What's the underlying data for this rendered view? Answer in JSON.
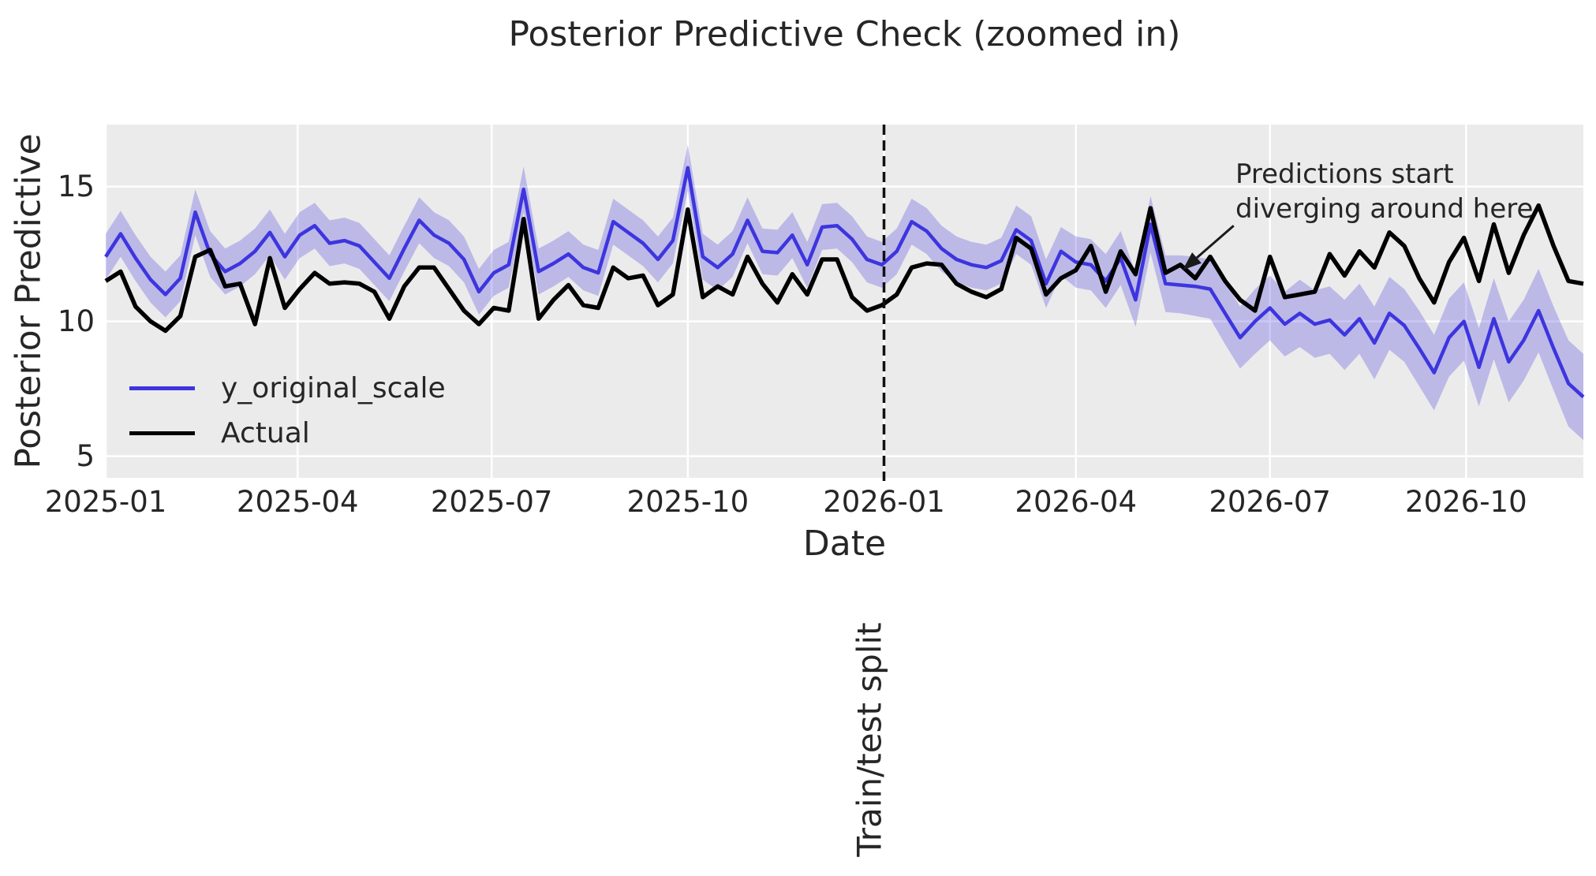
{
  "style": {
    "figure_background": "#ffffff",
    "axes_background": "#EBEBEB",
    "grid_color": "#ffffff",
    "text_color": "#262626"
  },
  "chart_data": {
    "type": "line",
    "title": "Posterior Predictive Check (zoomed in)",
    "xlabel": "Date",
    "ylabel": "Posterior Predictive",
    "grid": true,
    "x_start_date": "2025-01-01",
    "x_interval_days": 7,
    "n_points": 100,
    "xlim_days": [
      0,
      693
    ],
    "ylim": [
      4.2,
      17.3
    ],
    "x_ticks": [
      {
        "label": "2025-01",
        "day": 0
      },
      {
        "label": "2025-04",
        "day": 90
      },
      {
        "label": "2025-07",
        "day": 181
      },
      {
        "label": "2025-10",
        "day": 273
      },
      {
        "label": "2026-01",
        "day": 365
      },
      {
        "label": "2026-04",
        "day": 455
      },
      {
        "label": "2026-07",
        "day": 546
      },
      {
        "label": "2026-10",
        "day": 638
      }
    ],
    "y_ticks": [
      {
        "label": "15",
        "value": 15
      },
      {
        "label": "10",
        "value": 10
      },
      {
        "label": "5",
        "value": 5
      }
    ],
    "series": [
      {
        "name": "y_original_scale",
        "color": "#3D35DE",
        "line_width": 4.5,
        "values": [
          12.4,
          13.25,
          12.35,
          11.55,
          11.0,
          11.6,
          14.05,
          12.5,
          11.85,
          12.15,
          12.6,
          13.3,
          12.4,
          13.2,
          13.55,
          12.9,
          13.0,
          12.8,
          12.2,
          11.6,
          12.7,
          13.75,
          13.2,
          12.9,
          12.3,
          11.1,
          11.8,
          12.1,
          14.9,
          11.85,
          12.15,
          12.5,
          12.0,
          11.8,
          13.7,
          13.3,
          12.9,
          12.3,
          13.0,
          15.7,
          12.4,
          12.0,
          12.5,
          13.75,
          12.6,
          12.55,
          13.2,
          12.1,
          13.5,
          13.55,
          13.05,
          12.3,
          12.1,
          12.6,
          13.7,
          13.35,
          12.7,
          12.3,
          12.1,
          12.0,
          12.25,
          13.4,
          13.0,
          11.4,
          12.6,
          12.2,
          12.1,
          11.5,
          12.35,
          10.8,
          13.6,
          11.4,
          11.35,
          11.3,
          11.2,
          10.3,
          9.4,
          10.0,
          10.5,
          9.9,
          10.3,
          9.9,
          10.05,
          9.5,
          10.1,
          9.2,
          10.3,
          9.85,
          9.0,
          8.1,
          9.4,
          10.0,
          8.3,
          10.1,
          8.5,
          9.3,
          10.4,
          9.0,
          7.7,
          7.2
        ]
      },
      {
        "name": "Actual",
        "color": "#000000",
        "line_width": 5.5,
        "values": [
          11.5,
          11.85,
          10.55,
          10.0,
          9.65,
          10.2,
          12.4,
          12.65,
          11.3,
          11.4,
          9.9,
          12.35,
          10.5,
          11.2,
          11.8,
          11.4,
          11.45,
          11.4,
          11.1,
          10.1,
          11.3,
          12.0,
          12.0,
          11.2,
          10.4,
          9.9,
          10.5,
          10.4,
          13.8,
          10.1,
          10.8,
          11.35,
          10.6,
          10.5,
          12.0,
          11.6,
          11.7,
          10.6,
          11.0,
          14.15,
          10.9,
          11.3,
          11.0,
          12.4,
          11.4,
          10.7,
          11.75,
          11.0,
          12.3,
          12.3,
          10.9,
          10.4,
          10.6,
          11.0,
          12.0,
          12.15,
          12.1,
          11.4,
          11.1,
          10.9,
          11.2,
          13.1,
          12.7,
          11.0,
          11.6,
          11.9,
          12.8,
          11.1,
          12.6,
          11.75,
          14.2,
          11.8,
          12.1,
          11.6,
          12.4,
          11.5,
          10.8,
          10.4,
          12.4,
          10.9,
          11.0,
          11.1,
          12.5,
          11.7,
          12.6,
          12.0,
          13.3,
          12.8,
          11.6,
          10.7,
          12.2,
          13.1,
          11.5,
          13.6,
          11.8,
          13.2,
          14.3,
          12.8,
          11.5,
          11.4
        ]
      }
    ],
    "band": {
      "series": "y_original_scale",
      "color": "#3D35DE",
      "opacity": 0.27,
      "upper": [
        13.25,
        14.1,
        13.2,
        12.4,
        11.85,
        12.45,
        14.9,
        13.35,
        12.7,
        13.0,
        13.45,
        14.15,
        13.25,
        14.05,
        14.4,
        13.75,
        13.85,
        13.65,
        13.05,
        12.45,
        13.55,
        14.6,
        14.05,
        13.75,
        13.15,
        11.95,
        12.65,
        12.95,
        15.75,
        12.7,
        13.0,
        13.35,
        12.85,
        12.65,
        14.55,
        14.15,
        13.75,
        13.15,
        13.85,
        16.55,
        13.25,
        12.85,
        13.35,
        14.6,
        13.45,
        13.4,
        14.05,
        12.95,
        14.35,
        14.4,
        13.9,
        13.15,
        12.95,
        13.45,
        14.55,
        14.2,
        13.55,
        13.15,
        12.95,
        12.85,
        13.1,
        14.3,
        13.9,
        12.3,
        13.5,
        13.15,
        13.05,
        12.5,
        13.35,
        11.8,
        14.65,
        12.45,
        12.45,
        12.4,
        12.3,
        11.45,
        10.55,
        11.2,
        11.7,
        11.1,
        11.55,
        11.15,
        11.3,
        10.8,
        11.4,
        10.55,
        11.65,
        11.2,
        10.4,
        9.5,
        10.85,
        11.45,
        9.75,
        11.6,
        10.0,
        10.8,
        11.95,
        10.55,
        9.3,
        8.8
      ],
      "lower": [
        11.55,
        12.4,
        11.5,
        10.7,
        10.15,
        10.75,
        13.2,
        11.65,
        11.0,
        11.3,
        11.75,
        12.45,
        11.55,
        12.35,
        12.7,
        12.05,
        12.15,
        11.95,
        11.35,
        10.75,
        11.85,
        12.9,
        12.35,
        12.05,
        11.45,
        10.25,
        10.95,
        11.25,
        14.05,
        11.0,
        11.3,
        11.65,
        11.15,
        10.95,
        12.85,
        12.45,
        12.05,
        11.45,
        12.15,
        14.85,
        11.55,
        11.15,
        11.65,
        12.9,
        11.75,
        11.7,
        12.35,
        11.25,
        12.65,
        12.7,
        12.2,
        11.45,
        11.25,
        11.75,
        12.85,
        12.5,
        11.85,
        11.45,
        11.25,
        11.15,
        11.4,
        12.5,
        12.1,
        10.5,
        11.7,
        11.25,
        11.15,
        10.5,
        11.35,
        9.8,
        12.55,
        10.35,
        10.3,
        10.2,
        10.1,
        9.15,
        8.25,
        8.8,
        9.3,
        8.7,
        9.05,
        8.65,
        8.8,
        8.2,
        8.8,
        7.85,
        8.95,
        8.5,
        7.6,
        6.7,
        7.95,
        8.55,
        6.85,
        8.6,
        7.0,
        7.8,
        8.85,
        7.45,
        6.1,
        5.6
      ]
    },
    "split_line": {
      "day": 365,
      "style": "dashed",
      "color": "#111111",
      "label": "Train/test split"
    },
    "annotation": {
      "text": "Predictions start\ndiverging around here",
      "text_day": 530,
      "text_value": 15.9,
      "arrow": {
        "from_day": 529,
        "from_value": 13.55,
        "to_day": 505,
        "to_value": 11.9
      }
    },
    "legend": {
      "position": "center left",
      "frame": false,
      "entries": [
        {
          "label": "y_original_scale",
          "color": "#3D35DE"
        },
        {
          "label": "Actual",
          "color": "#000000"
        }
      ]
    }
  }
}
